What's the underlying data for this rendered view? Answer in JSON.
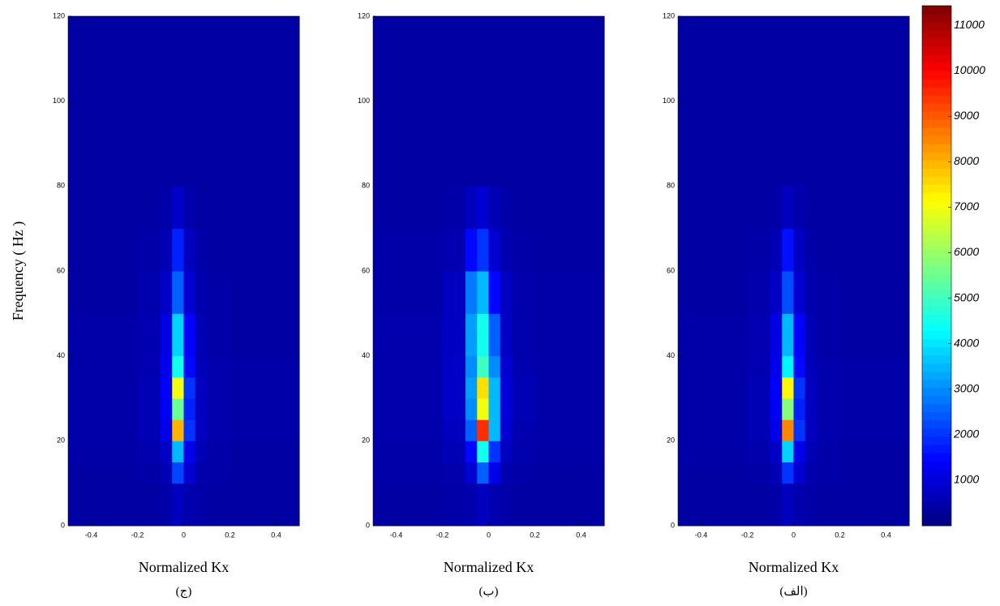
{
  "chart_data": [
    {
      "type": "heatmap",
      "ylabel": "Frequency ( Hz )",
      "xlabel": "Normalized Kx",
      "caption": "(ج)",
      "xlim": [
        -0.5,
        0.5
      ],
      "ylim": [
        0,
        120
      ],
      "xticks": [
        -0.4,
        -0.2,
        0,
        0.2,
        0.4
      ],
      "yticks": [
        0,
        20,
        40,
        60,
        80,
        100,
        120
      ],
      "x_edges": [
        -0.5,
        -0.2,
        -0.1,
        -0.05,
        0,
        0.05,
        0.1,
        0.2,
        0.5
      ],
      "y_edges": [
        0,
        10,
        15,
        20,
        25,
        30,
        35,
        40,
        50,
        60,
        70,
        80,
        120
      ],
      "z": [
        [
          400,
          400,
          450,
          700,
          500,
          450,
          400,
          400
        ],
        [
          400,
          450,
          600,
          2200,
          900,
          500,
          450,
          400
        ],
        [
          450,
          500,
          800,
          3500,
          1200,
          600,
          450,
          400
        ],
        [
          450,
          600,
          1200,
          8000,
          2000,
          700,
          500,
          450
        ],
        [
          450,
          600,
          1300,
          5500,
          1800,
          700,
          500,
          450
        ],
        [
          450,
          600,
          1400,
          7000,
          2000,
          700,
          500,
          450
        ],
        [
          450,
          550,
          1200,
          4500,
          1500,
          650,
          500,
          450
        ],
        [
          450,
          550,
          1100,
          3800,
          1400,
          600,
          450,
          400
        ],
        [
          400,
          500,
          800,
          2500,
          900,
          500,
          450,
          400
        ],
        [
          400,
          450,
          600,
          1800,
          700,
          450,
          400,
          400
        ],
        [
          400,
          400,
          450,
          800,
          500,
          400,
          400,
          400
        ],
        [
          400,
          400,
          400,
          400,
          400,
          400,
          400,
          400
        ]
      ]
    },
    {
      "type": "heatmap",
      "xlabel": "Normalized Kx",
      "caption": "(ب)",
      "xlim": [
        -0.5,
        0.5
      ],
      "ylim": [
        0,
        120
      ],
      "xticks": [
        -0.4,
        -0.2,
        0,
        0.2,
        0.4
      ],
      "yticks": [
        0,
        20,
        40,
        60,
        80,
        100,
        120
      ],
      "x_edges": [
        -0.5,
        -0.2,
        -0.1,
        -0.05,
        0,
        0.05,
        0.1,
        0.2,
        0.5
      ],
      "y_edges": [
        0,
        10,
        15,
        20,
        25,
        30,
        35,
        40,
        50,
        60,
        70,
        80,
        120
      ],
      "z": [
        [
          400,
          450,
          500,
          700,
          550,
          450,
          400,
          400
        ],
        [
          450,
          500,
          900,
          2500,
          1200,
          550,
          450,
          400
        ],
        [
          450,
          600,
          1500,
          4500,
          2000,
          700,
          500,
          450
        ],
        [
          500,
          700,
          2500,
          9500,
          3500,
          900,
          550,
          450
        ],
        [
          500,
          800,
          3000,
          7000,
          3500,
          1000,
          600,
          450
        ],
        [
          500,
          800,
          3200,
          7500,
          3500,
          1000,
          600,
          450
        ],
        [
          500,
          800,
          3000,
          5000,
          3000,
          900,
          550,
          450
        ],
        [
          500,
          750,
          3200,
          4500,
          2500,
          800,
          500,
          450
        ],
        [
          450,
          700,
          2800,
          3500,
          1500,
          700,
          500,
          450
        ],
        [
          450,
          550,
          1500,
          2000,
          900,
          550,
          450,
          400
        ],
        [
          400,
          450,
          700,
          900,
          600,
          450,
          400,
          400
        ],
        [
          400,
          400,
          400,
          400,
          400,
          400,
          400,
          400
        ]
      ]
    },
    {
      "type": "heatmap",
      "xlabel": "Normalized Kx",
      "caption": "(الف)",
      "xlim": [
        -0.5,
        0.5
      ],
      "ylim": [
        0,
        120
      ],
      "xticks": [
        -0.4,
        -0.2,
        0,
        0.2,
        0.4
      ],
      "yticks": [
        0,
        20,
        40,
        60,
        80,
        100,
        120
      ],
      "x_edges": [
        -0.5,
        -0.2,
        -0.1,
        -0.05,
        0,
        0.05,
        0.1,
        0.2,
        0.5
      ],
      "y_edges": [
        0,
        10,
        15,
        20,
        25,
        30,
        35,
        40,
        50,
        60,
        70,
        80,
        120
      ],
      "z": [
        [
          400,
          400,
          450,
          700,
          500,
          450,
          400,
          400
        ],
        [
          400,
          450,
          600,
          2000,
          900,
          500,
          450,
          400
        ],
        [
          450,
          500,
          800,
          3800,
          1200,
          600,
          450,
          400
        ],
        [
          450,
          600,
          1200,
          8500,
          2000,
          700,
          500,
          450
        ],
        [
          450,
          600,
          1300,
          5800,
          1800,
          700,
          500,
          450
        ],
        [
          450,
          600,
          1400,
          7200,
          2000,
          700,
          500,
          450
        ],
        [
          450,
          550,
          1200,
          4200,
          1500,
          650,
          500,
          450
        ],
        [
          450,
          550,
          1100,
          3500,
          1400,
          600,
          450,
          400
        ],
        [
          400,
          500,
          800,
          2300,
          900,
          500,
          450,
          400
        ],
        [
          400,
          450,
          600,
          1600,
          700,
          450,
          400,
          400
        ],
        [
          400,
          400,
          450,
          700,
          500,
          400,
          400,
          400
        ],
        [
          400,
          400,
          400,
          400,
          400,
          400,
          400,
          400
        ]
      ],
      "colorbar": {
        "clim": [
          0,
          11430
        ],
        "ticks": [
          1000,
          2000,
          3000,
          4000,
          5000,
          6000,
          7000,
          8000,
          9000,
          10000,
          11000
        ]
      }
    }
  ]
}
